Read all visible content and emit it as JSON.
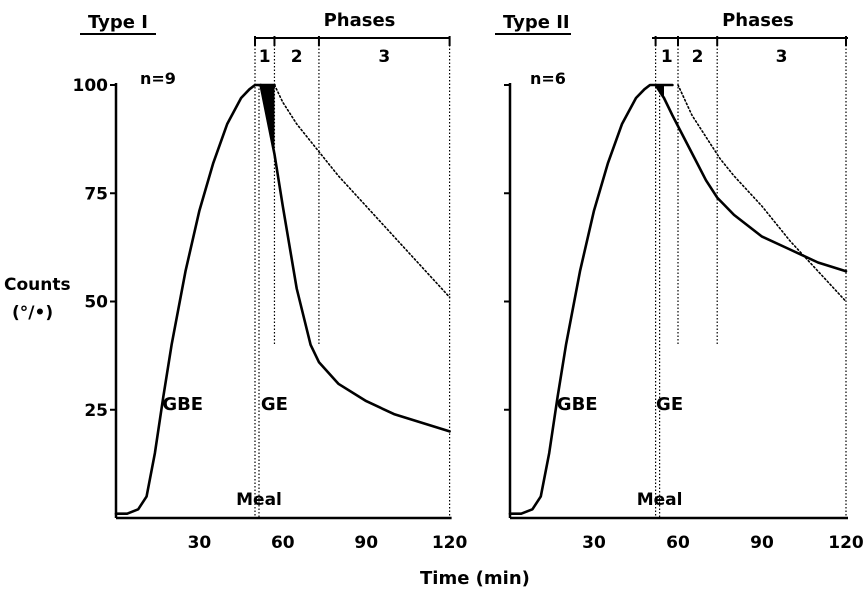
{
  "y_axis_label": {
    "line1": "Counts",
    "line2": "(°/•)"
  },
  "x_axis_label": "Time (min)",
  "chart_data": [
    {
      "type": "line",
      "title": "Type I",
      "n_label": "n=9",
      "phases_label": "Phases",
      "phase_numbers": [
        "1",
        "2",
        "3"
      ],
      "phase_boundaries": [
        50,
        57,
        73,
        120
      ],
      "xlim": [
        0,
        120
      ],
      "ylim": [
        0,
        100
      ],
      "x_ticks": [
        30,
        60,
        90,
        120
      ],
      "y_ticks": [
        25,
        50,
        75,
        100
      ],
      "grid": false,
      "annotations": {
        "gbe": "GBE",
        "ge": "GE",
        "meal": "Meal"
      },
      "series": [
        {
          "name": "GBE",
          "style": "solid",
          "x": [
            0,
            4,
            8,
            11,
            14,
            17,
            20,
            25,
            30,
            35,
            40,
            45,
            48,
            50,
            52,
            55,
            57
          ],
          "y": [
            1,
            1,
            2,
            5,
            15,
            28,
            40,
            57,
            71,
            82,
            91,
            97,
            99,
            100,
            100,
            100,
            100
          ]
        },
        {
          "name": "GE",
          "style": "solid",
          "x": [
            52,
            57,
            60,
            65,
            70,
            73,
            80,
            90,
            100,
            110,
            120
          ],
          "y": [
            100,
            84,
            72,
            53,
            40,
            36,
            31,
            27,
            24,
            22,
            20
          ]
        },
        {
          "style": "dotted",
          "x": [
            57,
            60,
            65,
            70,
            75,
            80,
            90,
            100,
            110,
            120
          ],
          "y": [
            100,
            96,
            91,
            87,
            83,
            79,
            72,
            65,
            58,
            51
          ]
        }
      ]
    },
    {
      "type": "line",
      "title": "Type II",
      "n_label": "n=6",
      "phases_label": "Phases",
      "phase_numbers": [
        "1",
        "2",
        "3"
      ],
      "phase_boundaries": [
        52,
        60,
        74,
        120
      ],
      "xlim": [
        0,
        120
      ],
      "ylim": [
        0,
        100
      ],
      "x_ticks": [
        30,
        60,
        90,
        120
      ],
      "y_ticks": [
        25,
        50,
        75,
        100
      ],
      "grid": false,
      "annotations": {
        "gbe": "GBE",
        "ge": "GE",
        "meal": "Meal"
      },
      "series": [
        {
          "name": "GBE",
          "style": "solid",
          "x": [
            0,
            4,
            8,
            11,
            14,
            17,
            20,
            25,
            30,
            35,
            40,
            45,
            48,
            50,
            52,
            55,
            58
          ],
          "y": [
            1,
            1,
            2,
            5,
            15,
            28,
            40,
            57,
            71,
            82,
            91,
            97,
            99,
            100,
            100,
            100,
            100
          ]
        },
        {
          "name": "GE",
          "style": "solid",
          "x": [
            52,
            55,
            58,
            62,
            66,
            70,
            74,
            80,
            90,
            100,
            110,
            120
          ],
          "y": [
            100,
            97,
            93,
            88,
            83,
            78,
            74,
            70,
            65,
            62,
            59,
            57
          ]
        },
        {
          "style": "dotted",
          "x": [
            60,
            65,
            70,
            75,
            80,
            90,
            100,
            110,
            120
          ],
          "y": [
            100,
            93,
            88,
            83,
            79,
            72,
            64,
            57,
            50
          ]
        }
      ]
    }
  ]
}
